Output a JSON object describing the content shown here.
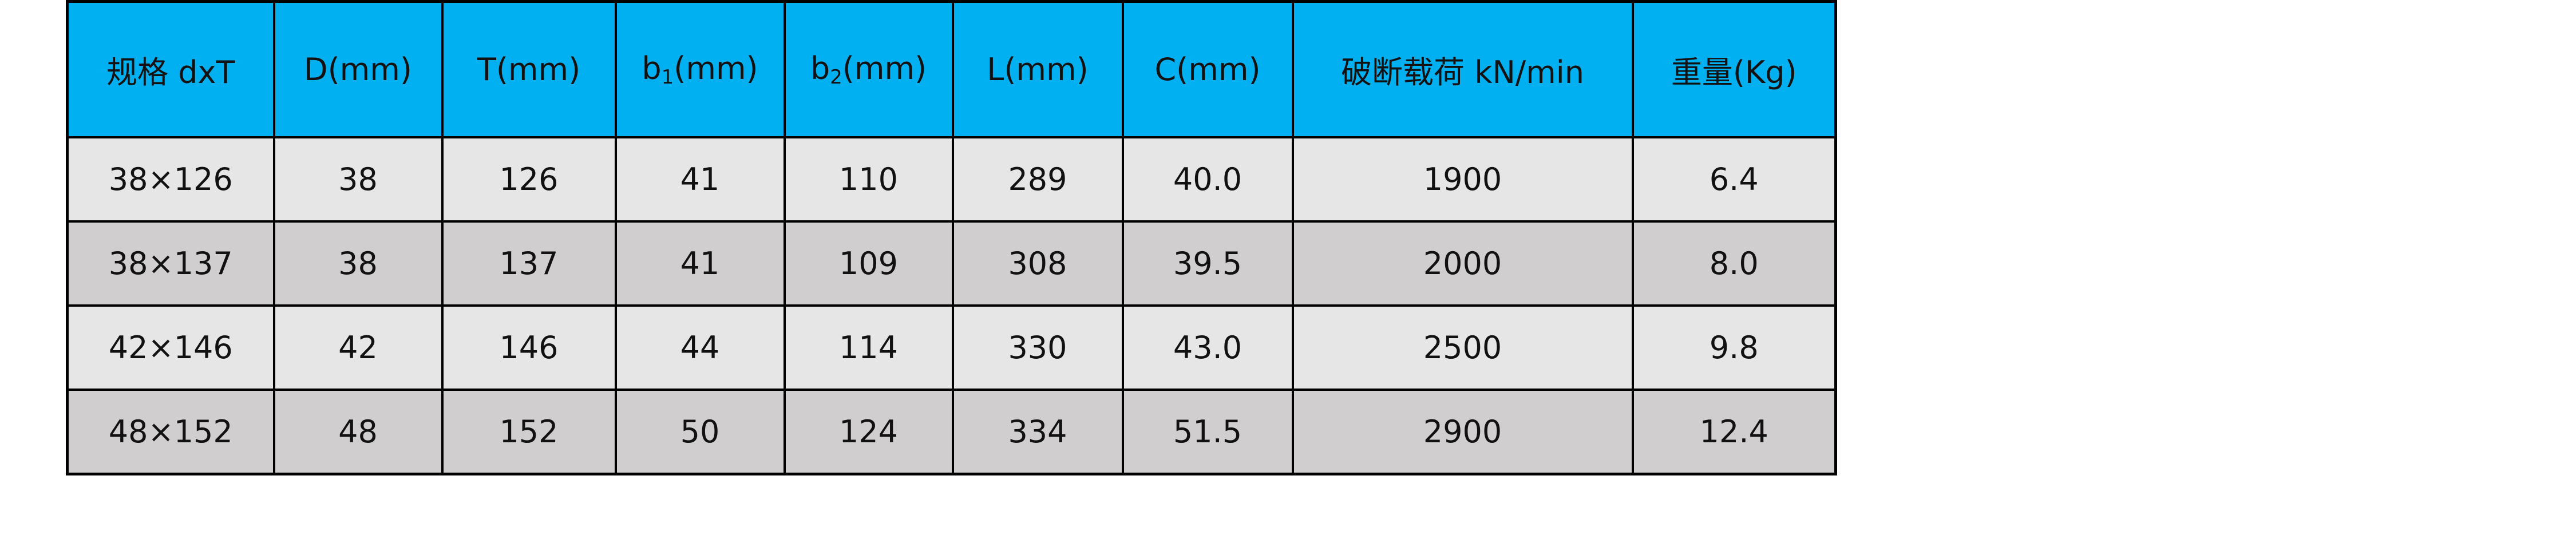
{
  "colors": {
    "header": "#00B0F0",
    "row_light": "#E6E6E6",
    "row_dark": "#D0CECE"
  },
  "headers": [
    {
      "text": "规格 dxT"
    },
    {
      "text": "D(mm)"
    },
    {
      "text": "T(mm)"
    },
    {
      "pre": "b",
      "sub": "1",
      "post": "(mm)"
    },
    {
      "pre": "b",
      "sub": "2",
      "post": "(mm)"
    },
    {
      "text": "L(mm)"
    },
    {
      "text": "C(mm)"
    },
    {
      "text": "破断载荷 kN/min"
    },
    {
      "text": "重量(Kg)"
    }
  ],
  "rows": [
    [
      "38×126",
      "38",
      "126",
      "41",
      "110",
      "289",
      "40.0",
      "1900",
      "6.4"
    ],
    [
      "38×137",
      "38",
      "137",
      "41",
      "109",
      "308",
      "39.5",
      "2000",
      "8.0"
    ],
    [
      "42×146",
      "42",
      "146",
      "44",
      "114",
      "330",
      "43.0",
      "2500",
      "9.8"
    ],
    [
      "48×152",
      "48",
      "152",
      "50",
      "124",
      "334",
      "51.5",
      "2900",
      "12.4"
    ]
  ]
}
